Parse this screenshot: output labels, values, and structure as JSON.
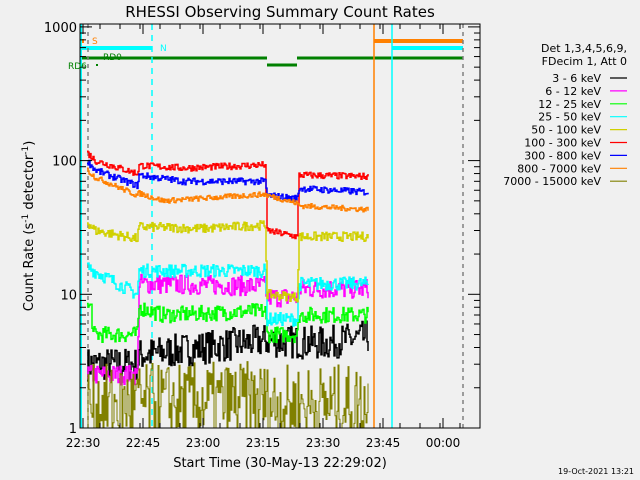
{
  "chart_data": {
    "type": "line",
    "title": "RHESSI Observing Summary Count Rates",
    "xlabel": "Start Time (30-May-13 22:29:02)",
    "ylabel": "Count Rate (s⁻¹ detector⁻¹)",
    "ylabel_main": "Count Rate (s",
    "ylabel_sup1": "-1",
    "ylabel_mid": " detector",
    "ylabel_sup2": "-1",
    "ylabel_end": ")",
    "yscale": "log",
    "ylim": [
      1,
      1000
    ],
    "xlim_minutes_from_2230": [
      -0.75,
      99.25
    ],
    "xticks": [
      {
        "label": "22:30",
        "t": 0
      },
      {
        "label": "22:45",
        "t": 15
      },
      {
        "label": "23:00",
        "t": 30
      },
      {
        "label": "23:15",
        "t": 45
      },
      {
        "label": "23:30",
        "t": 60
      },
      {
        "label": "23:45",
        "t": 75
      },
      {
        "label": "00:00",
        "t": 90
      }
    ],
    "yticks": [
      {
        "label": "1",
        "v": 1
      },
      {
        "label": "10",
        "v": 10
      },
      {
        "label": "100",
        "v": 100
      },
      {
        "label": "1000",
        "v": 1000
      }
    ],
    "legend_header": [
      "Det 1,3,4,5,6,9,",
      "FDecim 1, Att 0"
    ],
    "legend_position": "right",
    "series": [
      {
        "name": "3 - 6 keV",
        "color": "#000000",
        "noise": 0.25,
        "points": [
          [
            1,
            3
          ],
          [
            13.5,
            3
          ],
          [
            14,
            3.5
          ],
          [
            30,
            4
          ],
          [
            45.5,
            4.5
          ],
          [
            60,
            4.3
          ],
          [
            71.25,
            4.8
          ]
        ]
      },
      {
        "name": "6 - 12 keV",
        "color": "#ff00ff",
        "noise": 0.15,
        "points": [
          [
            1,
            2.5
          ],
          [
            13.5,
            2.5
          ],
          [
            14,
            12
          ],
          [
            45.5,
            11.5
          ],
          [
            46,
            9.5
          ],
          [
            53.5,
            9.5
          ],
          [
            54,
            11
          ],
          [
            71.25,
            11
          ]
        ]
      },
      {
        "name": "12 - 25 keV",
        "color": "#00ff00",
        "noise": 0.12,
        "points": [
          [
            1,
            8
          ],
          [
            2,
            8
          ],
          [
            2.5,
            5
          ],
          [
            13.5,
            5
          ],
          [
            14,
            8
          ],
          [
            20,
            7
          ],
          [
            45.5,
            7.5
          ],
          [
            46,
            5
          ],
          [
            53.5,
            5
          ],
          [
            54,
            7
          ],
          [
            71.25,
            7
          ]
        ]
      },
      {
        "name": "25 - 50 keV",
        "color": "#00ffff",
        "noise": 0.1,
        "points": [
          [
            1,
            16
          ],
          [
            13.5,
            10
          ],
          [
            14,
            15
          ],
          [
            45.5,
            15
          ],
          [
            46,
            6.5
          ],
          [
            53.5,
            6.5
          ],
          [
            54,
            12
          ],
          [
            71.25,
            12
          ]
        ]
      },
      {
        "name": "50 - 100 keV",
        "color": "#d0d000",
        "noise": 0.07,
        "points": [
          [
            1,
            35
          ],
          [
            3,
            30
          ],
          [
            13.5,
            26
          ],
          [
            14,
            32
          ],
          [
            30,
            31
          ],
          [
            45.5,
            33
          ],
          [
            46,
            10
          ],
          [
            53.5,
            9.5
          ],
          [
            54,
            27
          ],
          [
            71.25,
            27
          ]
        ]
      },
      {
        "name": "100 - 300 keV",
        "color": "#ff0000",
        "noise": 0.05,
        "points": [
          [
            1,
            115
          ],
          [
            3,
            100
          ],
          [
            13.5,
            80
          ],
          [
            14,
            92
          ],
          [
            25,
            88
          ],
          [
            45.5,
            93
          ],
          [
            46,
            30
          ],
          [
            53.5,
            27
          ],
          [
            54,
            78
          ],
          [
            71.25,
            76
          ]
        ]
      },
      {
        "name": "300 - 800 keV",
        "color": "#0000ff",
        "noise": 0.05,
        "points": [
          [
            1,
            100
          ],
          [
            3,
            85
          ],
          [
            13.5,
            65
          ],
          [
            14,
            78
          ],
          [
            25,
            70
          ],
          [
            45.5,
            70
          ],
          [
            46,
            55
          ],
          [
            53.5,
            52
          ],
          [
            54,
            62
          ],
          [
            71.25,
            58
          ]
        ]
      },
      {
        "name": "800 - 7000 keV",
        "color": "#ff8000",
        "noise": 0.04,
        "points": [
          [
            1,
            85
          ],
          [
            3,
            75
          ],
          [
            13.5,
            55
          ],
          [
            14,
            57
          ],
          [
            20,
            50
          ],
          [
            45.5,
            56
          ],
          [
            46,
            55
          ],
          [
            53.5,
            48
          ],
          [
            54,
            46
          ],
          [
            71.25,
            43
          ]
        ]
      },
      {
        "name": "7000 - 15000 keV",
        "color": "#808000",
        "noise": 0.6,
        "points": [
          [
            1,
            1.5
          ],
          [
            45.5,
            1.6
          ],
          [
            46,
            1.5
          ],
          [
            71.25,
            1.5
          ]
        ]
      }
    ],
    "annotations": {
      "s_label": "S",
      "n_label": "N",
      "rd0_label": "RD0",
      "rd6_label": "RD6"
    }
  },
  "footer": {
    "timestamp": "19-Oct-2021 13:21"
  }
}
